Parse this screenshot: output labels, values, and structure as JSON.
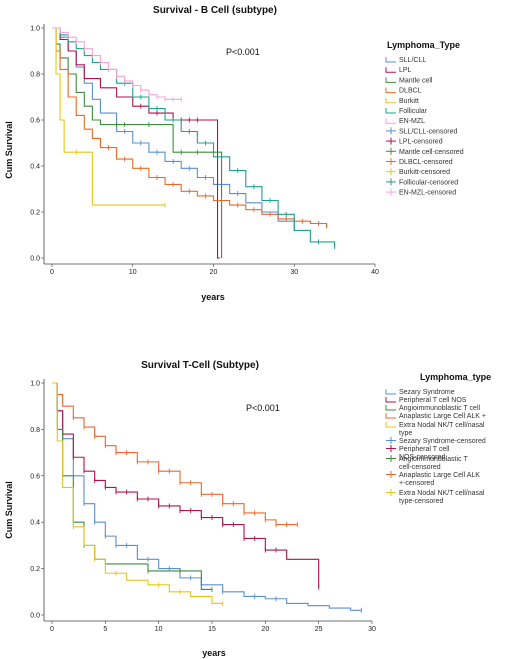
{
  "chart_data": [
    {
      "type": "line",
      "subtype": "kaplan-meier",
      "title": "Survival - B Cell (subtype)",
      "xlabel": "years",
      "ylabel": "Cum Survival",
      "annotation": "P<0.001",
      "xlim": [
        0,
        40
      ],
      "ylim": [
        0,
        1.0
      ],
      "x_ticks": [
        "0",
        "10",
        "20",
        "30",
        "40"
      ],
      "y_ticks": [
        "0.0",
        "0.2",
        "0.4",
        "0.6",
        "0.8",
        "1.0"
      ],
      "legend_title": "Lymphoma_Type",
      "legend_position": "right",
      "legend_entries": [
        {
          "label": "SLL/CLL",
          "color": "#5b8fd4",
          "kind": "line"
        },
        {
          "label": "LPL",
          "color": "#b0124a",
          "kind": "line"
        },
        {
          "label": "Mantle cell",
          "color": "#3f8a3f",
          "kind": "line"
        },
        {
          "label": "DLBCL",
          "color": "#e8692b",
          "kind": "line"
        },
        {
          "label": "Burkitt",
          "color": "#e6c619",
          "kind": "line"
        },
        {
          "label": "Follicular",
          "color": "#1aa38a",
          "kind": "line"
        },
        {
          "label": "EN-MZL",
          "color": "#f4a6d7",
          "kind": "line"
        },
        {
          "label": "SLL/CLL-censored",
          "color": "#5b8fd4",
          "kind": "marker"
        },
        {
          "label": "LPL-censored",
          "color": "#b0124a",
          "kind": "marker"
        },
        {
          "label": "Mantle cell-censored",
          "color": "#3f8a3f",
          "kind": "marker"
        },
        {
          "label": "DLBCL-censored",
          "color": "#e8692b",
          "kind": "marker"
        },
        {
          "label": "Burkitt-censored",
          "color": "#e6c619",
          "kind": "marker"
        },
        {
          "label": "Follicular-censored",
          "color": "#1aa38a",
          "kind": "marker"
        },
        {
          "label": "EN-MZL-censored",
          "color": "#f4a6d7",
          "kind": "marker"
        }
      ],
      "series": [
        {
          "name": "SLL/CLL",
          "color": "#5b8fd4",
          "x": [
            0,
            1,
            2,
            3,
            4,
            5,
            6,
            8,
            10,
            12,
            14,
            16,
            18,
            20,
            22,
            24,
            26,
            28,
            30
          ],
          "y": [
            1.0,
            0.96,
            0.9,
            0.83,
            0.76,
            0.69,
            0.63,
            0.55,
            0.5,
            0.46,
            0.42,
            0.39,
            0.35,
            0.32,
            0.28,
            0.24,
            0.2,
            0.16,
            0.12
          ],
          "censored_x": [
            9,
            11,
            13,
            15,
            17,
            19,
            23
          ]
        },
        {
          "name": "LPL",
          "color": "#b0124a",
          "x": [
            0,
            1,
            2,
            3,
            4,
            6,
            8,
            10,
            12,
            15,
            18,
            20.5,
            20.5,
            20.8
          ],
          "y": [
            1.0,
            0.95,
            0.9,
            0.84,
            0.78,
            0.74,
            0.7,
            0.66,
            0.63,
            0.6,
            0.6,
            0.6,
            0.0,
            0.0
          ],
          "censored_x": [
            11,
            13,
            14,
            16,
            17,
            18
          ]
        },
        {
          "name": "Mantle cell",
          "color": "#3f8a3f",
          "x": [
            0,
            0.5,
            1,
            2,
            3,
            4,
            5,
            6,
            7,
            10,
            15,
            20,
            21,
            21
          ],
          "y": [
            1.0,
            0.93,
            0.87,
            0.8,
            0.72,
            0.66,
            0.6,
            0.58,
            0.58,
            0.58,
            0.46,
            0.46,
            0.46,
            0.0
          ],
          "censored_x": [
            8,
            9,
            12,
            16,
            18
          ]
        },
        {
          "name": "DLBCL",
          "color": "#e8692b",
          "x": [
            0,
            0.5,
            1,
            2,
            3,
            4,
            5,
            6,
            8,
            10,
            12,
            14,
            16,
            18,
            20,
            22,
            24,
            26,
            28,
            30,
            32,
            34
          ],
          "y": [
            1.0,
            0.9,
            0.82,
            0.7,
            0.62,
            0.56,
            0.52,
            0.48,
            0.43,
            0.39,
            0.35,
            0.32,
            0.29,
            0.27,
            0.25,
            0.23,
            0.21,
            0.19,
            0.17,
            0.16,
            0.15,
            0.13
          ],
          "censored_x": [
            7,
            9,
            11,
            13,
            15,
            17,
            19,
            21,
            23,
            25,
            27,
            29,
            31,
            33
          ]
        },
        {
          "name": "Burkitt",
          "color": "#e6c619",
          "x": [
            0,
            0.5,
            1,
            1.5,
            5,
            5,
            14
          ],
          "y": [
            1.0,
            0.8,
            0.6,
            0.46,
            0.46,
            0.23,
            0.23
          ],
          "censored_x": [
            3,
            14
          ]
        },
        {
          "name": "Follicular",
          "color": "#1aa38a",
          "x": [
            0,
            1,
            2,
            3,
            4,
            5,
            6,
            8,
            10,
            12,
            14,
            16,
            18,
            20,
            22,
            24,
            26,
            28,
            30,
            32,
            35
          ],
          "y": [
            1.0,
            0.97,
            0.94,
            0.91,
            0.88,
            0.85,
            0.82,
            0.76,
            0.7,
            0.65,
            0.6,
            0.55,
            0.5,
            0.44,
            0.38,
            0.31,
            0.25,
            0.19,
            0.12,
            0.07,
            0.05
          ],
          "censored_x": [
            7,
            9,
            11,
            13,
            15,
            17,
            19,
            21,
            23,
            25,
            27,
            29,
            33,
            35
          ]
        },
        {
          "name": "EN-MZL",
          "color": "#f4a6d7",
          "x": [
            0,
            1,
            2,
            3,
            4,
            5,
            6,
            7,
            8,
            9,
            10,
            11,
            12,
            13,
            14,
            16
          ],
          "y": [
            1.0,
            0.98,
            0.96,
            0.94,
            0.91,
            0.88,
            0.85,
            0.82,
            0.79,
            0.77,
            0.75,
            0.73,
            0.71,
            0.7,
            0.69,
            0.69
          ],
          "censored_x": [
            2,
            3,
            4,
            5,
            6,
            7,
            8,
            9,
            10,
            11,
            12,
            13,
            14,
            15,
            16
          ]
        }
      ]
    },
    {
      "type": "line",
      "subtype": "kaplan-meier",
      "title": "Survival T-Cell (Subtype)",
      "xlabel": "years",
      "ylabel": "Cum Survival",
      "annotation": "P<0.001",
      "xlim": [
        0,
        30
      ],
      "ylim": [
        0,
        1.0
      ],
      "x_ticks": [
        "0",
        "5",
        "10",
        "15",
        "20",
        "25",
        "30"
      ],
      "y_ticks": [
        "0.0",
        "0.2",
        "0.4",
        "0.6",
        "0.8",
        "1.0"
      ],
      "legend_title": "Lymphoma_type",
      "legend_position": "right",
      "legend_entries": [
        {
          "label": "Sezary Syndrome",
          "color": "#5b8fd4",
          "kind": "line"
        },
        {
          "label": "Peripheral T cell NOS",
          "color": "#b0124a",
          "kind": "line"
        },
        {
          "label": "Angioimmunoblastic T cell",
          "color": "#3f8a3f",
          "kind": "line"
        },
        {
          "label": "Anaplastic Large Cell ALK +",
          "color": "#e8692b",
          "kind": "line"
        },
        {
          "label": "Extra Nodal NK/T cell/nasal type",
          "color": "#e6c619",
          "kind": "line"
        },
        {
          "label": "Sezary Syndrome-censored",
          "color": "#5b8fd4",
          "kind": "marker"
        },
        {
          "label": "Peripheral T cell NOS-censored",
          "color": "#b0124a",
          "kind": "marker"
        },
        {
          "label": "Angioimmunoblastic T cell-censored",
          "color": "#3f8a3f",
          "kind": "marker"
        },
        {
          "label": "Anaplastic Large Cell ALK +-censored",
          "color": "#e8692b",
          "kind": "marker"
        },
        {
          "label": "Extra Nodal NK/T cell/nasal type-censored",
          "color": "#e6c619",
          "kind": "marker"
        }
      ],
      "series": [
        {
          "name": "Sezary Syndrome",
          "color": "#5b8fd4",
          "x": [
            0,
            0.5,
            1,
            2,
            3,
            4,
            5,
            6,
            8,
            10,
            12,
            14,
            16,
            18,
            20,
            22,
            24,
            26,
            28,
            29
          ],
          "y": [
            1.0,
            0.88,
            0.76,
            0.6,
            0.48,
            0.4,
            0.34,
            0.3,
            0.24,
            0.2,
            0.16,
            0.13,
            0.1,
            0.08,
            0.07,
            0.05,
            0.04,
            0.03,
            0.02,
            0.02
          ],
          "censored_x": [
            3,
            4,
            5,
            6,
            7,
            9,
            11,
            13,
            16,
            19,
            21,
            29
          ]
        },
        {
          "name": "Peripheral T cell NOS",
          "color": "#b0124a",
          "x": [
            0,
            0.5,
            1,
            2,
            3,
            4,
            5,
            6,
            8,
            10,
            12,
            14,
            16,
            18,
            20,
            22,
            24,
            25,
            25
          ],
          "y": [
            1.0,
            0.88,
            0.78,
            0.68,
            0.62,
            0.58,
            0.55,
            0.53,
            0.5,
            0.47,
            0.45,
            0.42,
            0.39,
            0.33,
            0.28,
            0.24,
            0.24,
            0.24,
            0.12
          ],
          "censored_x": [
            1,
            2,
            3,
            4,
            5,
            6,
            7,
            8,
            9,
            10,
            11,
            12,
            13,
            14,
            15,
            16,
            17,
            18,
            19,
            20,
            21,
            25
          ]
        },
        {
          "name": "Angioimmunoblastic T cell",
          "color": "#3f8a3f",
          "x": [
            0,
            0.5,
            1,
            2,
            3,
            4,
            5,
            7,
            9,
            10,
            13,
            14,
            15
          ],
          "y": [
            1.0,
            0.8,
            0.6,
            0.4,
            0.3,
            0.24,
            0.22,
            0.22,
            0.19,
            0.19,
            0.19,
            0.11,
            0.11
          ],
          "censored_x": [
            1,
            2,
            3,
            9,
            12,
            15
          ]
        },
        {
          "name": "Anaplastic Large Cell ALK +",
          "color": "#e8692b",
          "x": [
            0,
            0.5,
            1,
            2,
            3,
            4,
            5,
            6,
            8,
            10,
            12,
            14,
            16,
            18,
            20,
            21,
            22,
            23
          ],
          "y": [
            1.0,
            0.95,
            0.9,
            0.85,
            0.81,
            0.77,
            0.73,
            0.7,
            0.66,
            0.62,
            0.57,
            0.52,
            0.48,
            0.44,
            0.41,
            0.39,
            0.39,
            0.39
          ],
          "censored_x": [
            2,
            3,
            4,
            5,
            6,
            7,
            8,
            9,
            10,
            11,
            12,
            13,
            14,
            15,
            16,
            17,
            18,
            19,
            20,
            21,
            22,
            23
          ]
        },
        {
          "name": "Extra Nodal NK/T cell/nasal type",
          "color": "#e6c619",
          "x": [
            0,
            0.5,
            1,
            2,
            3,
            4,
            5,
            7,
            9,
            11,
            13,
            15,
            16
          ],
          "y": [
            1.0,
            0.75,
            0.55,
            0.38,
            0.3,
            0.24,
            0.18,
            0.15,
            0.13,
            0.1,
            0.08,
            0.05,
            0.05
          ],
          "censored_x": [
            2,
            4,
            6,
            10,
            12,
            16
          ]
        }
      ]
    }
  ]
}
